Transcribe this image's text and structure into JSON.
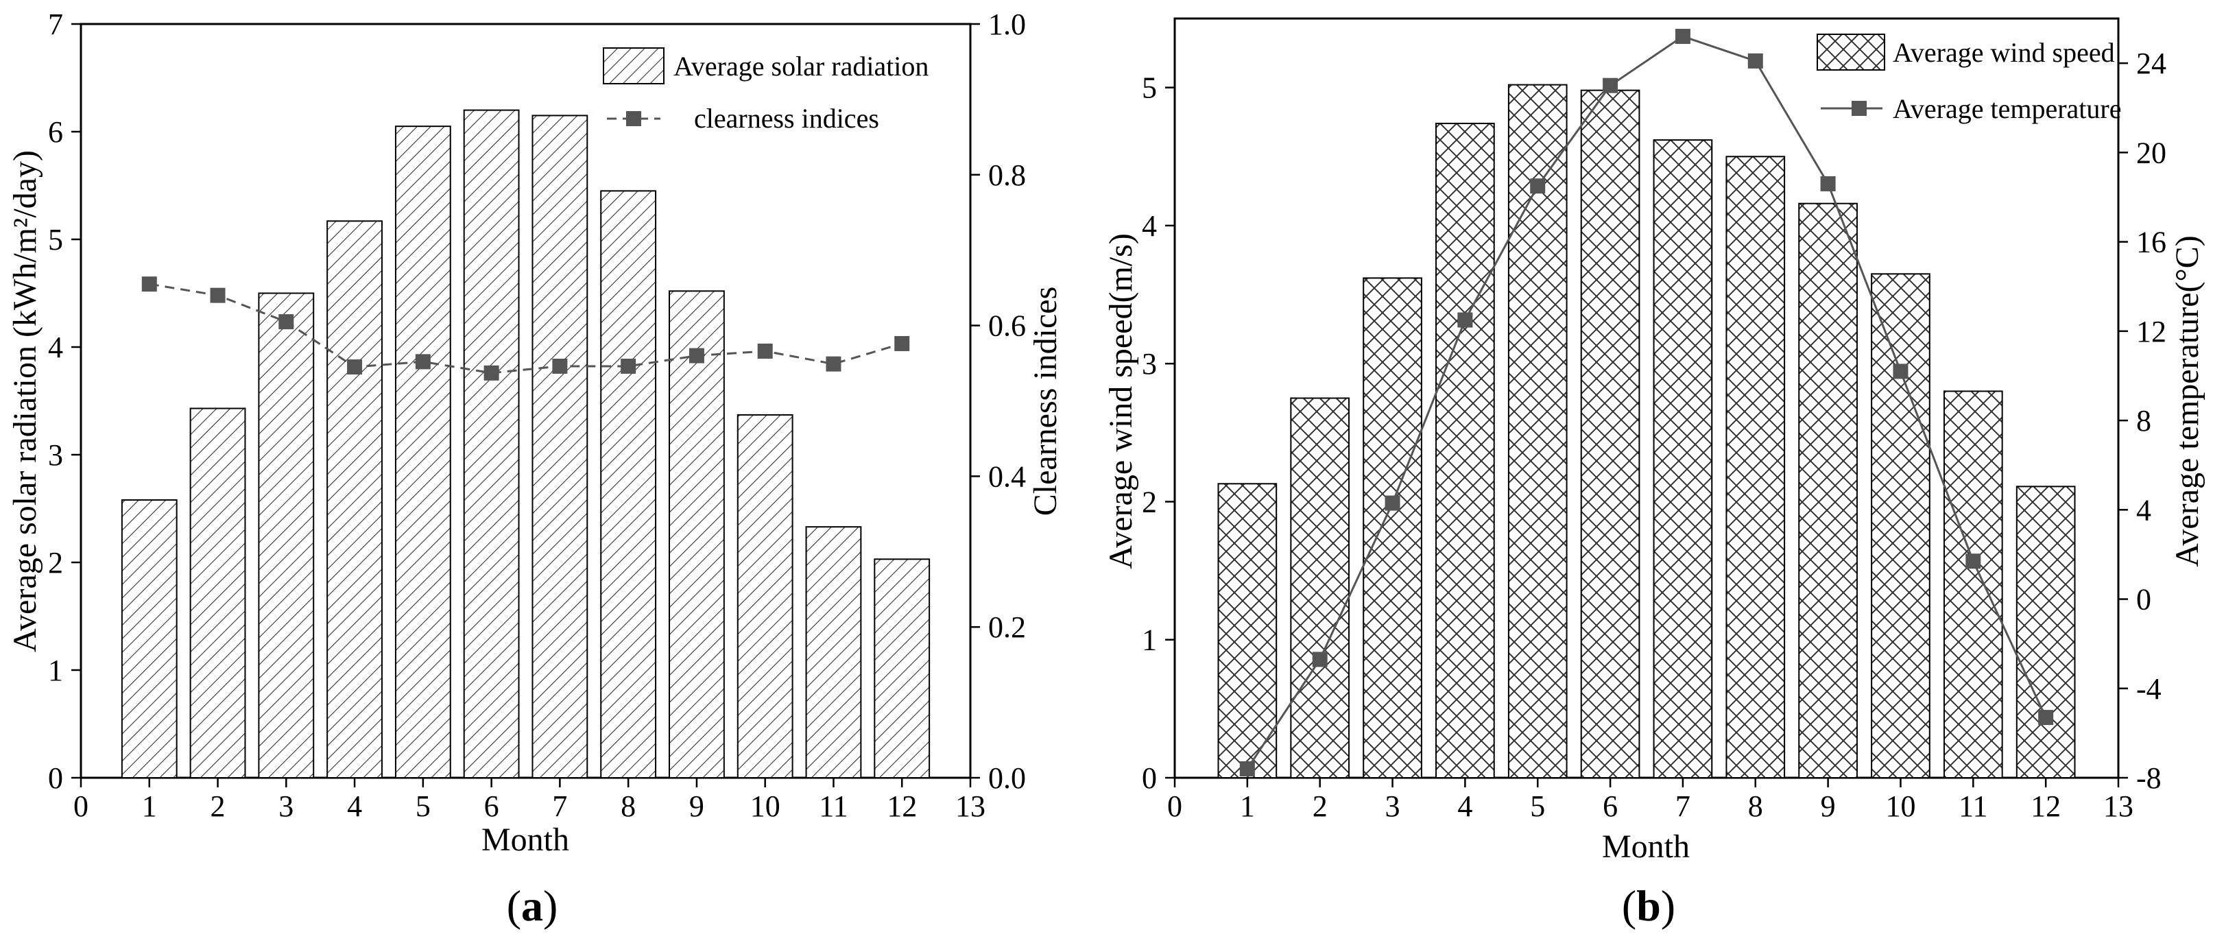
{
  "chart_data": [
    {
      "type": "bar+line",
      "panel_label": {
        "open": "(",
        "letter": "a",
        "close": ")"
      },
      "xlabel": "Month",
      "ylabel_left": "Average solar radiation (kWh/m²/day)",
      "ylabel_right": "Clearness indices",
      "xlim": [
        0,
        13
      ],
      "xticks": [
        0,
        1,
        2,
        3,
        4,
        5,
        6,
        7,
        8,
        9,
        10,
        11,
        12,
        13
      ],
      "ylim_left": [
        0,
        7
      ],
      "yticks_left": [
        0,
        1,
        2,
        3,
        4,
        5,
        6,
        7
      ],
      "ylim_right": [
        0.0,
        1.0
      ],
      "yticks_right": [
        "0.0",
        "0.2",
        "0.4",
        "0.6",
        "0.8",
        "1.0"
      ],
      "categories": [
        1,
        2,
        3,
        4,
        5,
        6,
        7,
        8,
        9,
        10,
        11,
        12
      ],
      "bars": {
        "name": "Average  solar radiation",
        "pattern": "diagonal-hatch",
        "values": [
          2.58,
          3.43,
          4.5,
          5.17,
          6.05,
          6.2,
          6.15,
          5.45,
          4.52,
          3.37,
          2.33,
          2.03
        ]
      },
      "line": {
        "name": "clearness indices",
        "marker": "square",
        "style": "dashed",
        "values": [
          0.655,
          0.64,
          0.605,
          0.545,
          0.552,
          0.537,
          0.546,
          0.546,
          0.56,
          0.566,
          0.549,
          0.576
        ]
      },
      "legend_position": "top-right"
    },
    {
      "type": "bar+line",
      "panel_label": {
        "open": "(",
        "letter": "b",
        "close": ")"
      },
      "xlabel": "Month",
      "ylabel_left": "Average wind speed(m/s)",
      "ylabel_right": "Average temperature(°C)",
      "xlim": [
        0,
        13
      ],
      "xticks": [
        0,
        1,
        2,
        3,
        4,
        5,
        6,
        7,
        8,
        9,
        10,
        11,
        12,
        13
      ],
      "ylim_left": [
        0,
        5.5
      ],
      "yticks_left": [
        0,
        1,
        2,
        3,
        4,
        5
      ],
      "ylim_right": [
        -8,
        26
      ],
      "yticks_right": [
        -8,
        -4,
        0,
        4,
        8,
        12,
        16,
        20,
        24
      ],
      "categories": [
        1,
        2,
        3,
        4,
        5,
        6,
        7,
        8,
        9,
        10,
        11,
        12
      ],
      "bars": {
        "name": "Average wind speed",
        "pattern": "cross-hatch",
        "values": [
          2.13,
          2.75,
          3.62,
          4.74,
          5.02,
          4.98,
          4.62,
          4.5,
          4.16,
          3.65,
          2.8,
          2.11
        ]
      },
      "line": {
        "name": "Average temperature",
        "marker": "square",
        "style": "solid",
        "values": [
          -7.6,
          -2.7,
          4.3,
          12.5,
          18.5,
          23.0,
          25.2,
          24.1,
          18.6,
          10.2,
          1.7,
          -5.3
        ]
      },
      "legend_position": "top-right"
    }
  ]
}
